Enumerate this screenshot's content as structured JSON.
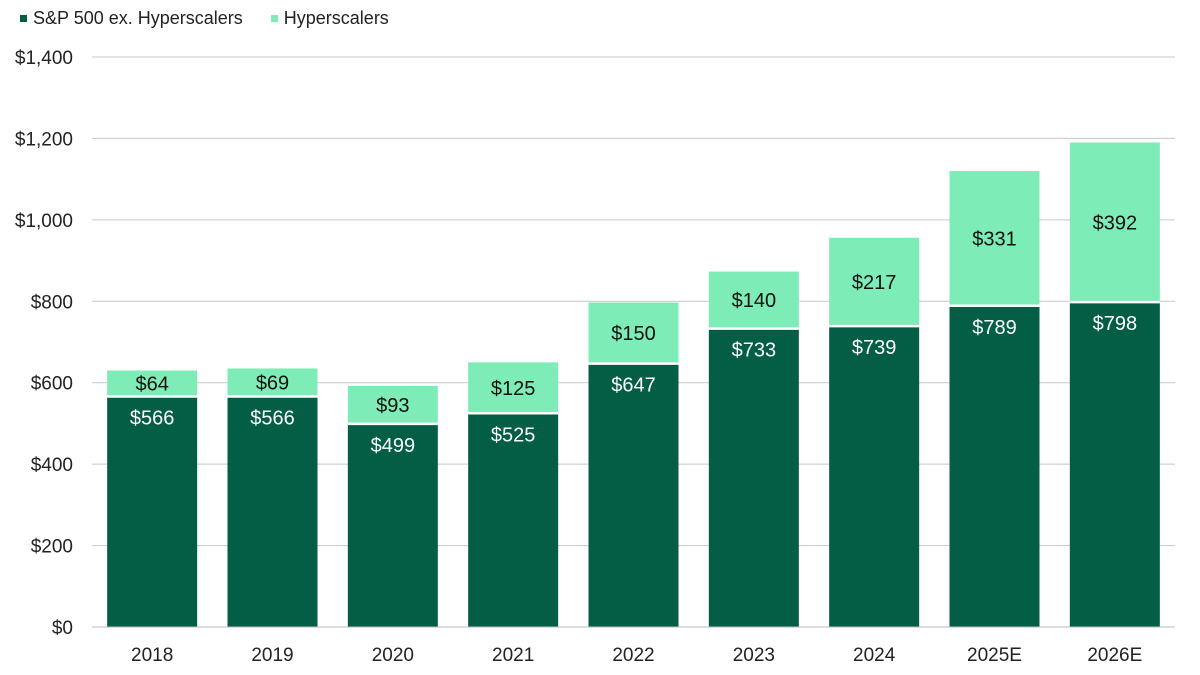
{
  "chart_data": {
    "type": "bar",
    "stacked": true,
    "categories": [
      "2018",
      "2019",
      "2020",
      "2021",
      "2022",
      "2023",
      "2024",
      "2025E",
      "2026E"
    ],
    "series": [
      {
        "name": "S&P 500 ex. Hyperscalers",
        "color": "#045d45",
        "label_color": "#ffffff",
        "values": [
          566,
          566,
          499,
          525,
          647,
          733,
          739,
          789,
          798
        ],
        "labels": [
          "$566",
          "$566",
          "$499",
          "$525",
          "$647",
          "$733",
          "$739",
          "$789",
          "$798"
        ]
      },
      {
        "name": "Hyperscalers",
        "color": "#7eecb6",
        "label_color": "#111111",
        "values": [
          64,
          69,
          93,
          125,
          150,
          140,
          217,
          331,
          392
        ],
        "labels": [
          "$64",
          "$69",
          "$93",
          "$125",
          "$150",
          "$140",
          "$217",
          "$331",
          "$392"
        ]
      }
    ],
    "ylim": [
      0,
      1400
    ],
    "yticks": [
      0,
      200,
      400,
      600,
      800,
      1000,
      1200,
      1400
    ],
    "ytick_labels": [
      "$0",
      "$200",
      "$400",
      "$600",
      "$800",
      "$1,000",
      "$1,200",
      "$1,400"
    ],
    "grid": true,
    "legend": "top-left",
    "title": "",
    "xlabel": "",
    "ylabel": ""
  }
}
